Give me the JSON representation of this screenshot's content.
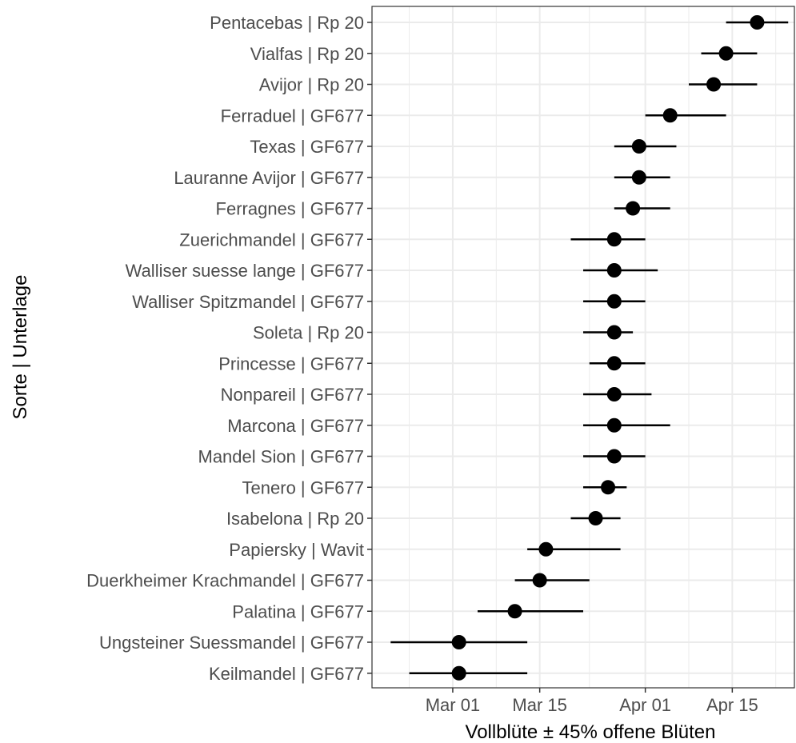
{
  "chart_data": {
    "type": "scatter",
    "subtype": "point-range",
    "title": "",
    "xlabel": "Vollblüte ± 45% offene Blüten",
    "ylabel": "Sorte | Unterlage",
    "x_ticks": [
      "Mar 01",
      "Mar 15",
      "Apr 01",
      "Apr 15"
    ],
    "xlim": [
      "2024-02-17",
      "2024-04-25"
    ],
    "grid": true,
    "legend": "none",
    "colors": {
      "point": "#000000",
      "grid": "#ebebeb",
      "panel_border": "#333333",
      "tick_label": "#4d4d4d"
    },
    "categories": [
      "Pentacebas | Rp 20",
      "Vialfas | Rp 20",
      "Avijor | Rp 20",
      "Ferraduel | GF677",
      "Texas | GF677",
      "Lauranne Avijor | GF677",
      "Ferragnes | GF677",
      "Zuerichmandel | GF677",
      "Walliser suesse lange | GF677",
      "Walliser Spitzmandel | GF677",
      "Soleta | Rp 20",
      "Princesse | GF677",
      "Nonpareil | GF677",
      "Marcona | GF677",
      "Mandel Sion | GF677",
      "Tenero | GF677",
      "Isabelona | Rp 20",
      "Papiersky |  Wavit",
      "Duerkheimer Krachmandel | GF677",
      "Palatina | GF677",
      "Ungsteiner Suessmandel | GF677",
      "Keilmandel | GF677"
    ],
    "points": [
      {
        "x": "2024-04-19",
        "xmin": "2024-04-14",
        "xmax": "2024-04-24"
      },
      {
        "x": "2024-04-14",
        "xmin": "2024-04-10",
        "xmax": "2024-04-19"
      },
      {
        "x": "2024-04-12",
        "xmin": "2024-04-08",
        "xmax": "2024-04-19"
      },
      {
        "x": "2024-04-05",
        "xmin": "2024-04-01",
        "xmax": "2024-04-14"
      },
      {
        "x": "2024-03-31",
        "xmin": "2024-03-27",
        "xmax": "2024-04-06"
      },
      {
        "x": "2024-03-31",
        "xmin": "2024-03-27",
        "xmax": "2024-04-05"
      },
      {
        "x": "2024-03-30",
        "xmin": "2024-03-27",
        "xmax": "2024-04-05"
      },
      {
        "x": "2024-03-27",
        "xmin": "2024-03-20",
        "xmax": "2024-04-01"
      },
      {
        "x": "2024-03-27",
        "xmin": "2024-03-22",
        "xmax": "2024-04-03"
      },
      {
        "x": "2024-03-27",
        "xmin": "2024-03-22",
        "xmax": "2024-04-01"
      },
      {
        "x": "2024-03-27",
        "xmin": "2024-03-22",
        "xmax": "2024-03-30"
      },
      {
        "x": "2024-03-27",
        "xmin": "2024-03-23",
        "xmax": "2024-04-01"
      },
      {
        "x": "2024-03-27",
        "xmin": "2024-03-22",
        "xmax": "2024-04-02"
      },
      {
        "x": "2024-03-27",
        "xmin": "2024-03-22",
        "xmax": "2024-04-05"
      },
      {
        "x": "2024-03-27",
        "xmin": "2024-03-22",
        "xmax": "2024-04-01"
      },
      {
        "x": "2024-03-26",
        "xmin": "2024-03-22",
        "xmax": "2024-03-29"
      },
      {
        "x": "2024-03-24",
        "xmin": "2024-03-20",
        "xmax": "2024-03-28"
      },
      {
        "x": "2024-03-16",
        "xmin": "2024-03-13",
        "xmax": "2024-03-28"
      },
      {
        "x": "2024-03-15",
        "xmin": "2024-03-11",
        "xmax": "2024-03-23"
      },
      {
        "x": "2024-03-11",
        "xmin": "2024-03-05",
        "xmax": "2024-03-22"
      },
      {
        "x": "2024-03-02",
        "xmin": "2024-02-20",
        "xmax": "2024-03-13"
      },
      {
        "x": "2024-03-02",
        "xmin": "2024-02-23",
        "xmax": "2024-03-13"
      }
    ]
  }
}
